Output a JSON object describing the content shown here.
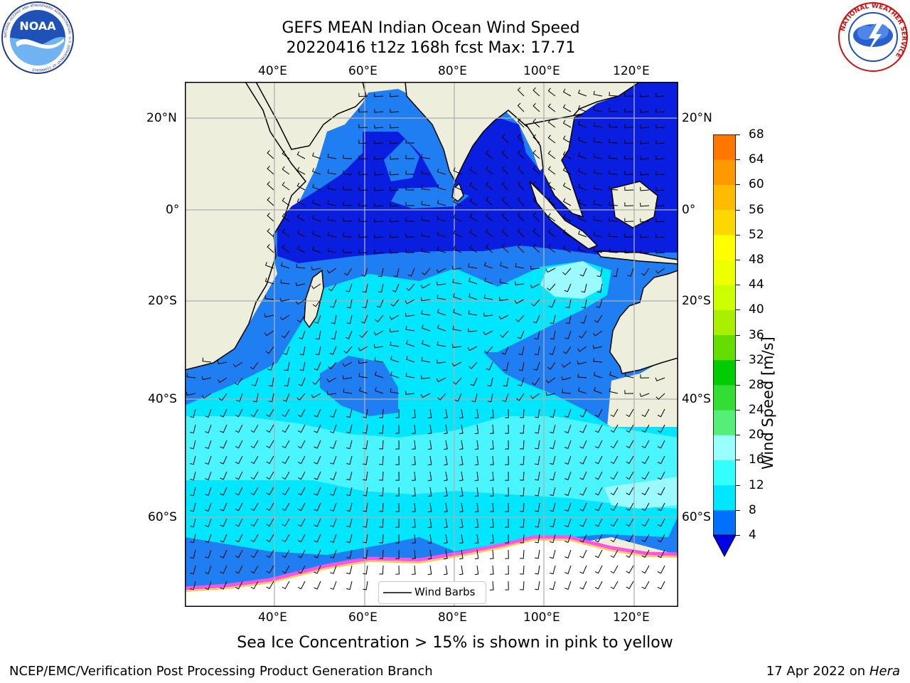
{
  "header": {
    "title_line1": "GEFS MEAN Indian Ocean Wind Speed",
    "title_line2": "20220416 t12z 168h fcst   Max: 17.71"
  },
  "logos": {
    "noaa_text": "NOAA",
    "noaa_ring_text": "NATIONAL OCEANIC AND ATMOSPHERIC ADMINISTRATION · U.S. DEPARTMENT OF COMMERCE",
    "nws_ring_text": "NATIONAL WEATHER SERVICE"
  },
  "map": {
    "lon_ticks": [
      "40°E",
      "60°E",
      "80°E",
      "100°E",
      "120°E"
    ],
    "lat_ticks": [
      "20°N",
      "0°",
      "20°S",
      "40°S",
      "60°S"
    ],
    "legend_label": "Wind Barbs"
  },
  "colorbar": {
    "label": "Wind Speed [m/s]",
    "ticks": [
      "68",
      "64",
      "60",
      "56",
      "52",
      "48",
      "44",
      "40",
      "36",
      "32",
      "28",
      "24",
      "20",
      "16",
      "12",
      "8",
      "4"
    ],
    "colors": [
      "#0000e6",
      "#0070ff",
      "#00e6ff",
      "#33ffff",
      "#99ffff",
      "#55ef77",
      "#33dd33",
      "#00cc00",
      "#66dd00",
      "#aaee00",
      "#ccff00",
      "#eeff00",
      "#ffff00",
      "#ffd700",
      "#ffbb00",
      "#ff9900",
      "#ff7700",
      "#ff5500",
      "#ff3300",
      "#ff0000"
    ]
  },
  "footer": {
    "caption": "Sea Ice Concentration > 15% is shown in pink to yellow",
    "credit": "NCEP/EMC/Verification Post Processing Product Generation Branch",
    "date": "17 Apr 2022 on ",
    "machine": "Hera"
  }
}
